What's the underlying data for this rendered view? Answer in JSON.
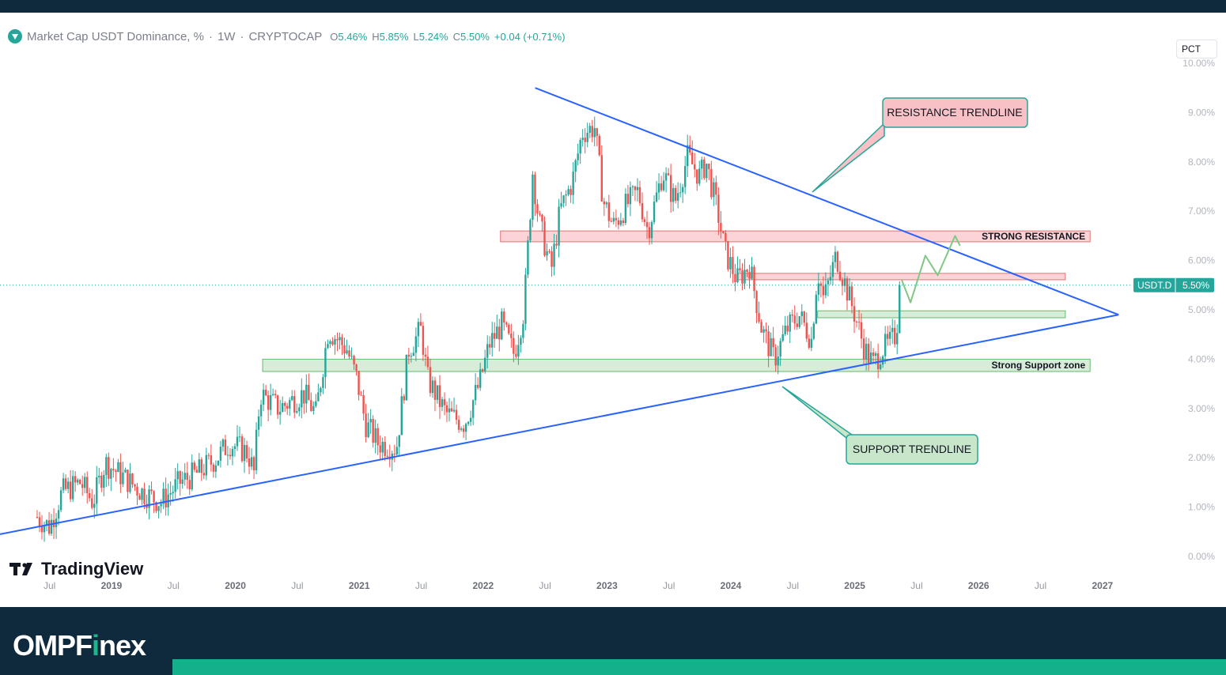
{
  "header": {
    "symbol_title": "Market Cap USDT Dominance, %",
    "interval": "1W",
    "exchange": "CRYPTOCAP",
    "ohlc": {
      "o_label": "O",
      "o": "5.46%",
      "h_label": "H",
      "h": "5.85%",
      "l_label": "L",
      "l": "5.24%",
      "c_label": "C",
      "c": "5.50%",
      "change": "+0.04 (+0.71%)"
    },
    "scale_button": "PCT"
  },
  "price_badge": {
    "symbol": "USDT.D",
    "value": "5.50%"
  },
  "branding": {
    "tradingview": "TradingView",
    "site_prefix": "OMPF",
    "site_accent": "i",
    "site_suffix": "nex"
  },
  "colors": {
    "up": "#26a69a",
    "down": "#ef5350",
    "trendline": "#2962ff",
    "brand_dark": "#0f2a3d",
    "brand_green": "#14b08c"
  },
  "chart_data": {
    "type": "candlestick",
    "y_unit": "%",
    "ylim": [
      0,
      10
    ],
    "y_ticks": [
      "10.00%",
      "9.00%",
      "8.00%",
      "7.00%",
      "6.00%",
      "5.00%",
      "4.00%",
      "3.00%",
      "2.00%",
      "1.00%",
      "0.00%"
    ],
    "x_ticks": [
      "Jul",
      "2019",
      "Jul",
      "2020",
      "Jul",
      "2021",
      "Jul",
      "2022",
      "Jul",
      "2023",
      "Jul",
      "2024",
      "Jul",
      "2025",
      "Jul",
      "2026",
      "Jul",
      "2027"
    ],
    "last_price": 5.5,
    "close_path": [
      [
        2018.4,
        0.8
      ],
      [
        2018.5,
        0.6
      ],
      [
        2018.6,
        1.3
      ],
      [
        2018.75,
        1.5
      ],
      [
        2018.85,
        1.1
      ],
      [
        2018.95,
        1.9
      ],
      [
        2019.1,
        1.6
      ],
      [
        2019.25,
        1.3
      ],
      [
        2019.4,
        1.1
      ],
      [
        2019.55,
        1.5
      ],
      [
        2019.7,
        1.7
      ],
      [
        2019.85,
        2.0
      ],
      [
        2019.95,
        2.3
      ],
      [
        2020.1,
        2.1
      ],
      [
        2020.15,
        1.7
      ],
      [
        2020.2,
        3.3
      ],
      [
        2020.35,
        3.0
      ],
      [
        2020.55,
        3.3
      ],
      [
        2020.65,
        2.9
      ],
      [
        2020.75,
        4.6
      ],
      [
        2020.9,
        4.2
      ],
      [
        2020.98,
        3.6
      ],
      [
        2021.05,
        2.7
      ],
      [
        2021.15,
        2.3
      ],
      [
        2021.3,
        2.2
      ],
      [
        2021.4,
        4.2
      ],
      [
        2021.5,
        4.6
      ],
      [
        2021.55,
        3.6
      ],
      [
        2021.7,
        2.9
      ],
      [
        2021.85,
        2.7
      ],
      [
        2021.97,
        3.5
      ],
      [
        2022.05,
        4.3
      ],
      [
        2022.15,
        4.7
      ],
      [
        2022.25,
        4.1
      ],
      [
        2022.33,
        5.0
      ],
      [
        2022.4,
        7.8
      ],
      [
        2022.45,
        6.8
      ],
      [
        2022.55,
        5.8
      ],
      [
        2022.62,
        7.0
      ],
      [
        2022.72,
        7.6
      ],
      [
        2022.8,
        8.6
      ],
      [
        2022.9,
        8.7
      ],
      [
        2022.97,
        7.2
      ],
      [
        2023.05,
        6.7
      ],
      [
        2023.15,
        7.1
      ],
      [
        2023.25,
        7.4
      ],
      [
        2023.33,
        6.6
      ],
      [
        2023.45,
        7.8
      ],
      [
        2023.55,
        7.2
      ],
      [
        2023.65,
        8.1
      ],
      [
        2023.75,
        7.7
      ],
      [
        2023.8,
        8.0
      ],
      [
        2023.9,
        6.9
      ],
      [
        2023.95,
        6.2
      ],
      [
        2024.05,
        5.6
      ],
      [
        2024.15,
        5.9
      ],
      [
        2024.25,
        4.6
      ],
      [
        2024.35,
        4.0
      ],
      [
        2024.45,
        4.6
      ],
      [
        2024.55,
        4.9
      ],
      [
        2024.65,
        4.4
      ],
      [
        2024.7,
        5.8
      ],
      [
        2024.75,
        5.2
      ],
      [
        2024.85,
        6.1
      ],
      [
        2024.95,
        5.3
      ],
      [
        2025.0,
        4.9
      ],
      [
        2025.08,
        4.2
      ],
      [
        2025.15,
        3.9
      ],
      [
        2025.22,
        4.2
      ],
      [
        2025.28,
        4.3
      ],
      [
        2025.33,
        4.5
      ],
      [
        2025.38,
        5.5
      ]
    ],
    "horizontal_zones": [
      {
        "label": "STRONG RESISTANCE",
        "x_from": 2022.14,
        "x_to": 2026.9,
        "y_low": 6.38,
        "y_high": 6.6,
        "color": "red"
      },
      {
        "label": "",
        "x_from": 2024.05,
        "x_to": 2026.7,
        "y_low": 5.61,
        "y_high": 5.74,
        "color": "red"
      },
      {
        "label": "",
        "x_from": 2024.7,
        "x_to": 2026.7,
        "y_low": 4.84,
        "y_high": 4.98,
        "color": "green"
      },
      {
        "label": "Strong Support zone",
        "x_from": 2020.22,
        "x_to": 2026.9,
        "y_low": 3.75,
        "y_high": 4.0,
        "color": "green"
      }
    ],
    "trendlines": [
      {
        "name": "resistance",
        "from": [
          2022.42,
          9.5
        ],
        "to": [
          2027.13,
          4.9
        ]
      },
      {
        "name": "support",
        "from": [
          2018.1,
          0.45
        ],
        "to": [
          2027.13,
          4.9
        ]
      }
    ],
    "projection": [
      [
        2025.38,
        5.6
      ],
      [
        2025.45,
        5.15
      ],
      [
        2025.57,
        6.1
      ],
      [
        2025.67,
        5.7
      ],
      [
        2025.81,
        6.5
      ],
      [
        2025.85,
        6.3
      ]
    ],
    "callouts": [
      {
        "text": "RESISTANCE TRENDLINE",
        "color": "red"
      },
      {
        "text": "SUPPORT TRENDLINE",
        "color": "green"
      }
    ]
  }
}
